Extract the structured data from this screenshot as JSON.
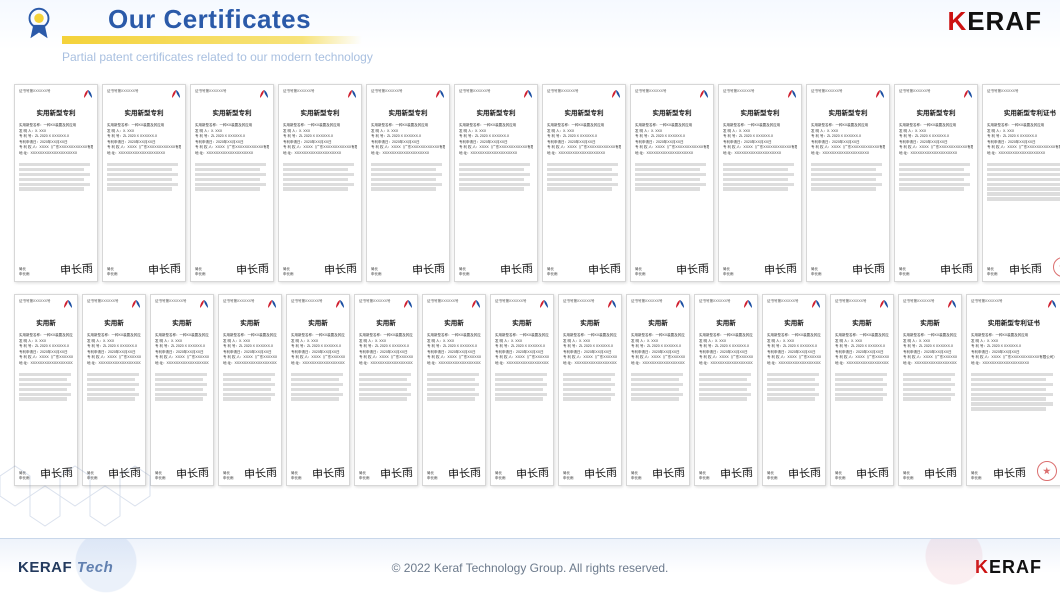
{
  "header": {
    "title": "Our Certificates",
    "subtitle": "Partial patent certificates related to our modern technology",
    "title_color": "#2b5aa9",
    "underline_color": "#f4d23a",
    "logo_text_pre": "K",
    "logo_text_post": "ERAF",
    "logo_accent": "#cc1111"
  },
  "certificate_common": {
    "title_full": "实用新型专利证书",
    "title_trunc_r1": "实用新型专利",
    "title_trunc_r2": "实用新",
    "top_label": "证书号第XXXXXX号",
    "fields": [
      "实用新型名称：一种XX装置及其应用",
      "发 明 人：X. XXX",
      "专 利 号：ZL 2020 X XXXXXX.X",
      "专利申请日：2020年XX月XX日",
      "专 利 权 人：XXXX（广东XXXXXXXXXXXX有限公司）",
      "地    址：XXXXXXXXXXXXXXXXXXXX"
    ],
    "sig_left_1": "局长",
    "sig_left_2": "申长雨",
    "signature_script": "申长雨",
    "seal_color": "#cc3333",
    "emblem_colors": [
      "#d01f2e",
      "#1b4fa3"
    ]
  },
  "rows": {
    "row1": {
      "count": 12,
      "last_wide_with_seal": true
    },
    "row2": {
      "count": 15,
      "last_wide_with_seal": true
    }
  },
  "footer": {
    "brand_main": "KERAF",
    "brand_suffix": "Tech",
    "copyright": "© 2022 Keraf Technology Group. All rights reserved.",
    "logo_text_pre": "K",
    "logo_text_post": "ERAF"
  },
  "colors": {
    "page_bg": "#ffffff",
    "cert_border": "#d7d7d7",
    "footer_grad_top": "#eef3fb"
  }
}
